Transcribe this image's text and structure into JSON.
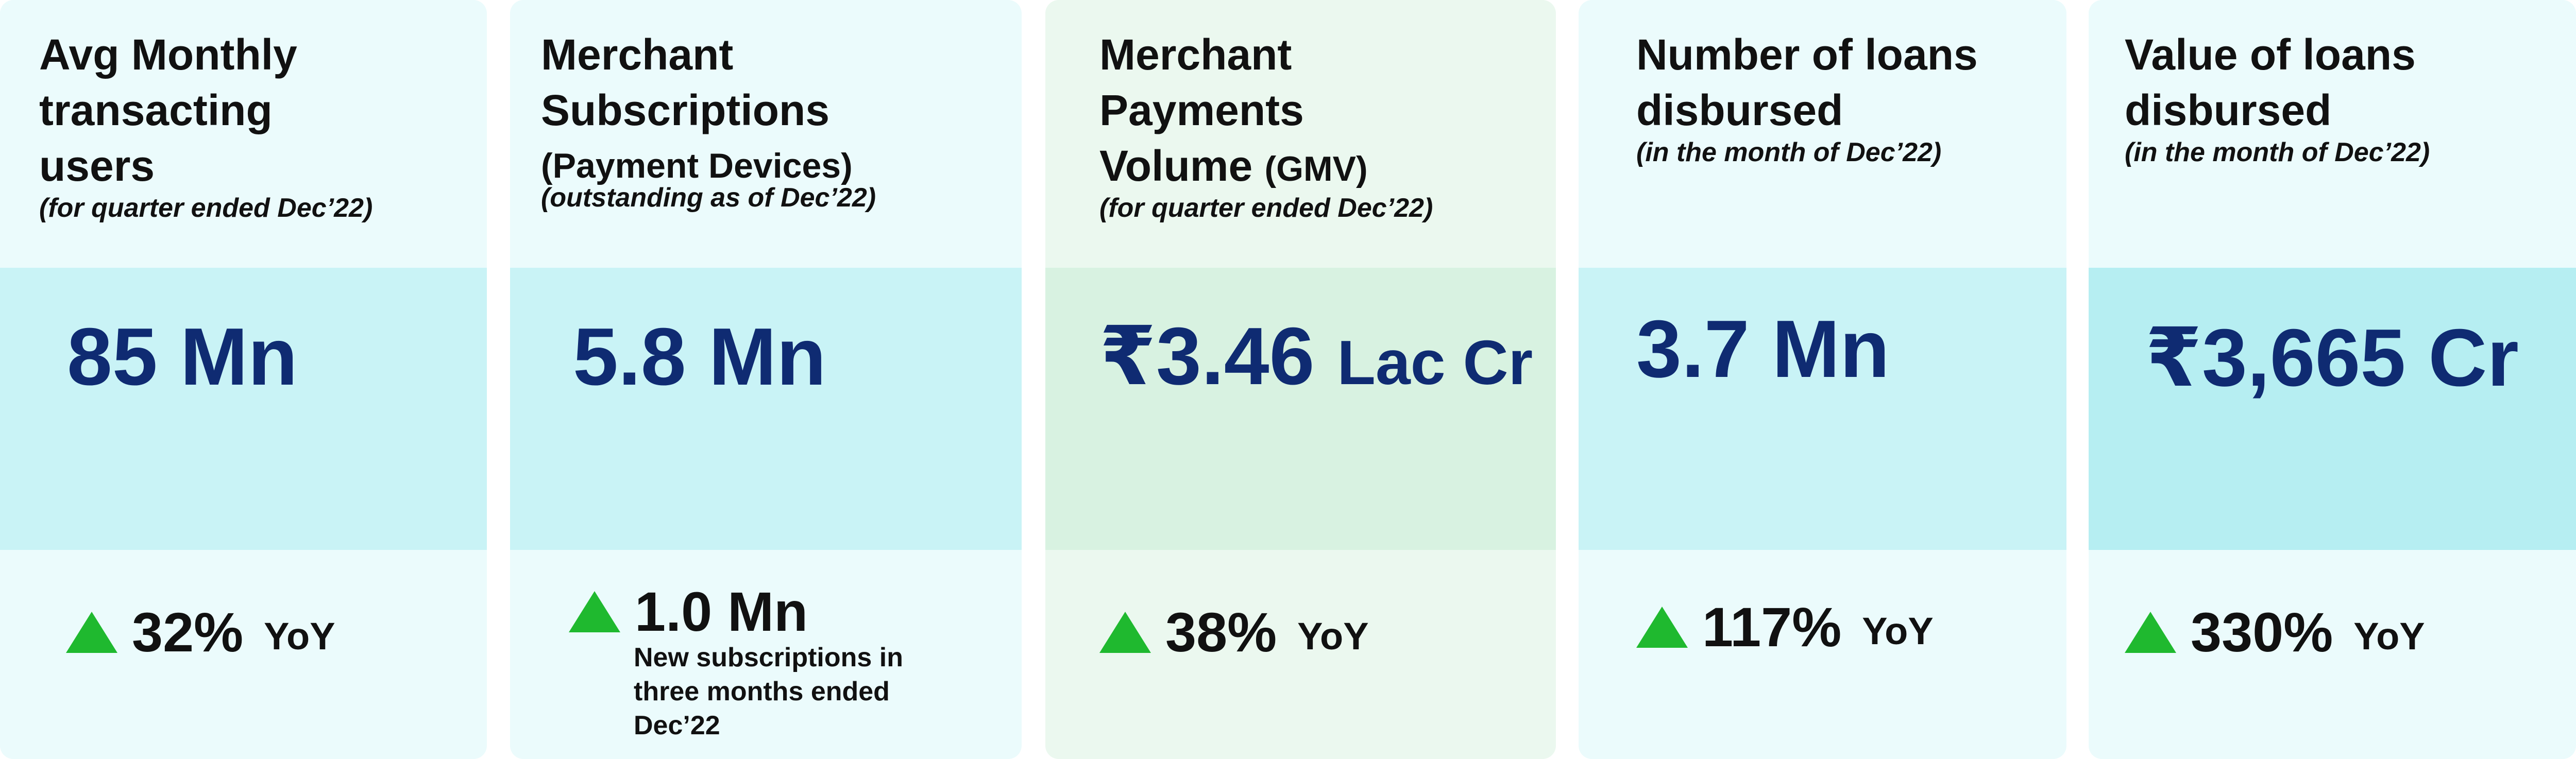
{
  "cards": [
    {
      "title_lines": [
        "Avg Monthly",
        "transacting",
        "users"
      ],
      "subtitle": "(for quarter ended Dec’22)",
      "metric": "85 Mn",
      "growth": {
        "value": "32%",
        "suffix": "YoY"
      }
    },
    {
      "title_lines": [
        "Merchant",
        "Subscriptions"
      ],
      "title_small": "(Payment Devices)",
      "subtitle": "(outstanding as of Dec’22)",
      "metric": "5.8 Mn",
      "growth": {
        "value": "1.0 Mn",
        "description": "New subscriptions in three months ended Dec’22"
      }
    },
    {
      "title_lines": [
        "Merchant",
        "Payments"
      ],
      "title_last_main": "Volume ",
      "title_last_small": "(GMV)",
      "subtitle": "(for quarter ended Dec’22)",
      "metric_main": "₹3.46 ",
      "metric_unit": "Lac Cr",
      "growth": {
        "value": "38%",
        "suffix": "YoY"
      }
    },
    {
      "title_lines": [
        "Number of loans",
        "disbursed"
      ],
      "subtitle": "(in the month of Dec’22)",
      "metric": "3.7 Mn",
      "growth": {
        "value": "117%",
        "suffix": "YoY"
      }
    },
    {
      "title_lines": [
        "Value of loans",
        "disbursed"
      ],
      "subtitle": "(in the month of Dec’22)",
      "metric": "₹3,665 Cr",
      "growth": {
        "value": "330%",
        "suffix": "YoY"
      }
    }
  ],
  "colors": {
    "metric_text": "#0f2b72",
    "card_bg": "#ebfbfc",
    "metric_band": "#c9f3f6",
    "green_card_bg": "#ebf8ef",
    "green_metric_band": "#d8f2e1",
    "up_arrow": "#1fb92f"
  },
  "icons": {
    "growth": "up-triangle-icon"
  }
}
